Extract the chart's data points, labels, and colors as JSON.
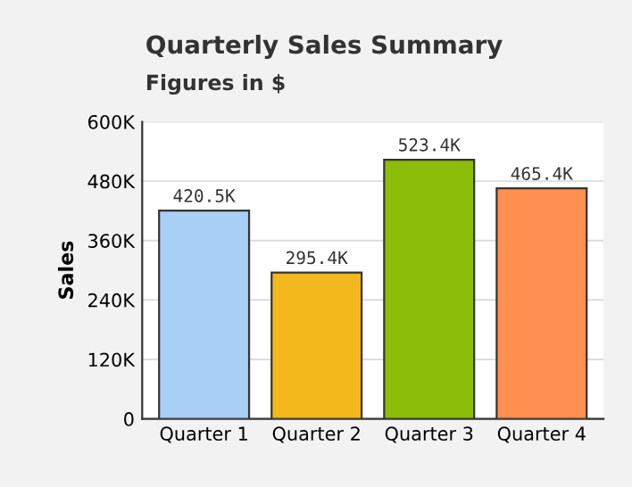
{
  "chart_data": {
    "type": "bar",
    "title": "Quarterly Sales Summary",
    "subtitle": "Figures in $",
    "ylabel": "Sales",
    "categories": [
      "Quarter 1",
      "Quarter 2",
      "Quarter 3",
      "Quarter 4"
    ],
    "values": [
      420500,
      295400,
      523400,
      465400
    ],
    "value_labels": [
      "420.5K",
      "295.4K",
      "523.4K",
      "465.4K"
    ],
    "colors": [
      "#a8d0f5",
      "#f2b81c",
      "#8cbd0a",
      "#ff9050"
    ],
    "ylim": [
      0,
      600000
    ],
    "yticks": [
      {
        "value": 0,
        "label": "0"
      },
      {
        "value": 120000,
        "label": "120K"
      },
      {
        "value": 240000,
        "label": "240K"
      },
      {
        "value": 360000,
        "label": "360K"
      },
      {
        "value": 480000,
        "label": "480K"
      },
      {
        "value": 600000,
        "label": "600K"
      }
    ],
    "grid": "y"
  }
}
